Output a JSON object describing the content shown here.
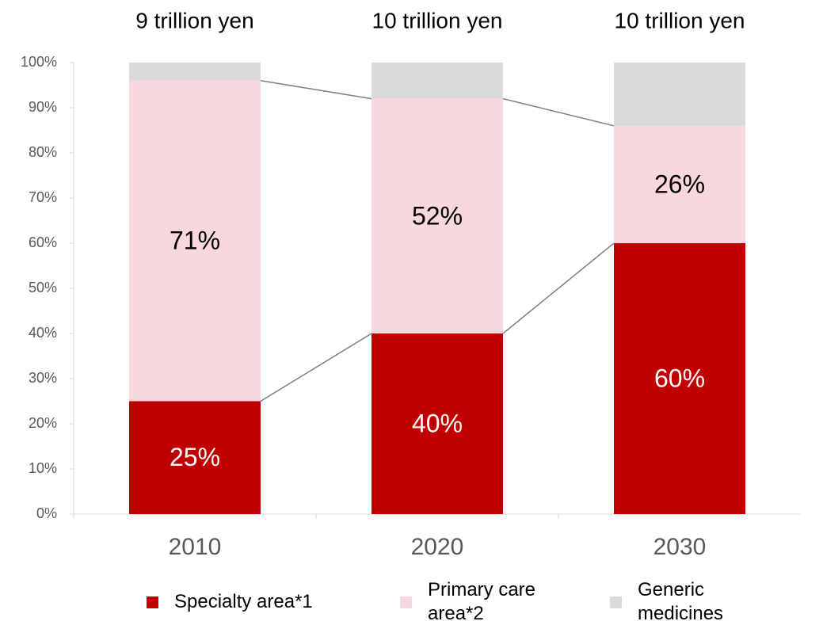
{
  "chart_data": {
    "type": "stacked_bar",
    "categories": [
      "2010",
      "2020",
      "2030"
    ],
    "annotations": [
      "9 trillion yen",
      "10 trillion yen",
      "10 trillion yen"
    ],
    "series": [
      {
        "name": "Specialty area*1",
        "color": "#c00000",
        "values": [
          25,
          40,
          60
        ],
        "value_labels": [
          "25%",
          "40%",
          "60%"
        ],
        "label_color": "#ffffff"
      },
      {
        "name": "Primary care area*2",
        "color": "#f8d7dd",
        "values": [
          71,
          52,
          26
        ],
        "value_labels": [
          "71%",
          "52%",
          "26%"
        ],
        "label_color": "#000000"
      },
      {
        "name": "Generic medicines",
        "color": "#d9d9d9",
        "values": [
          4,
          8,
          14
        ]
      }
    ],
    "ylim": [
      0,
      100
    ],
    "yticks": [
      {
        "value": 0,
        "label": "0%"
      },
      {
        "value": 10,
        "label": "10%"
      },
      {
        "value": 20,
        "label": "20%"
      },
      {
        "value": 30,
        "label": "30%"
      },
      {
        "value": 40,
        "label": "40%"
      },
      {
        "value": 50,
        "label": "50%"
      },
      {
        "value": 60,
        "label": "60%"
      },
      {
        "value": 70,
        "label": "70%"
      },
      {
        "value": 80,
        "label": "80%"
      },
      {
        "value": 90,
        "label": "90%"
      },
      {
        "value": 100,
        "label": "100%"
      }
    ],
    "grid": false
  }
}
